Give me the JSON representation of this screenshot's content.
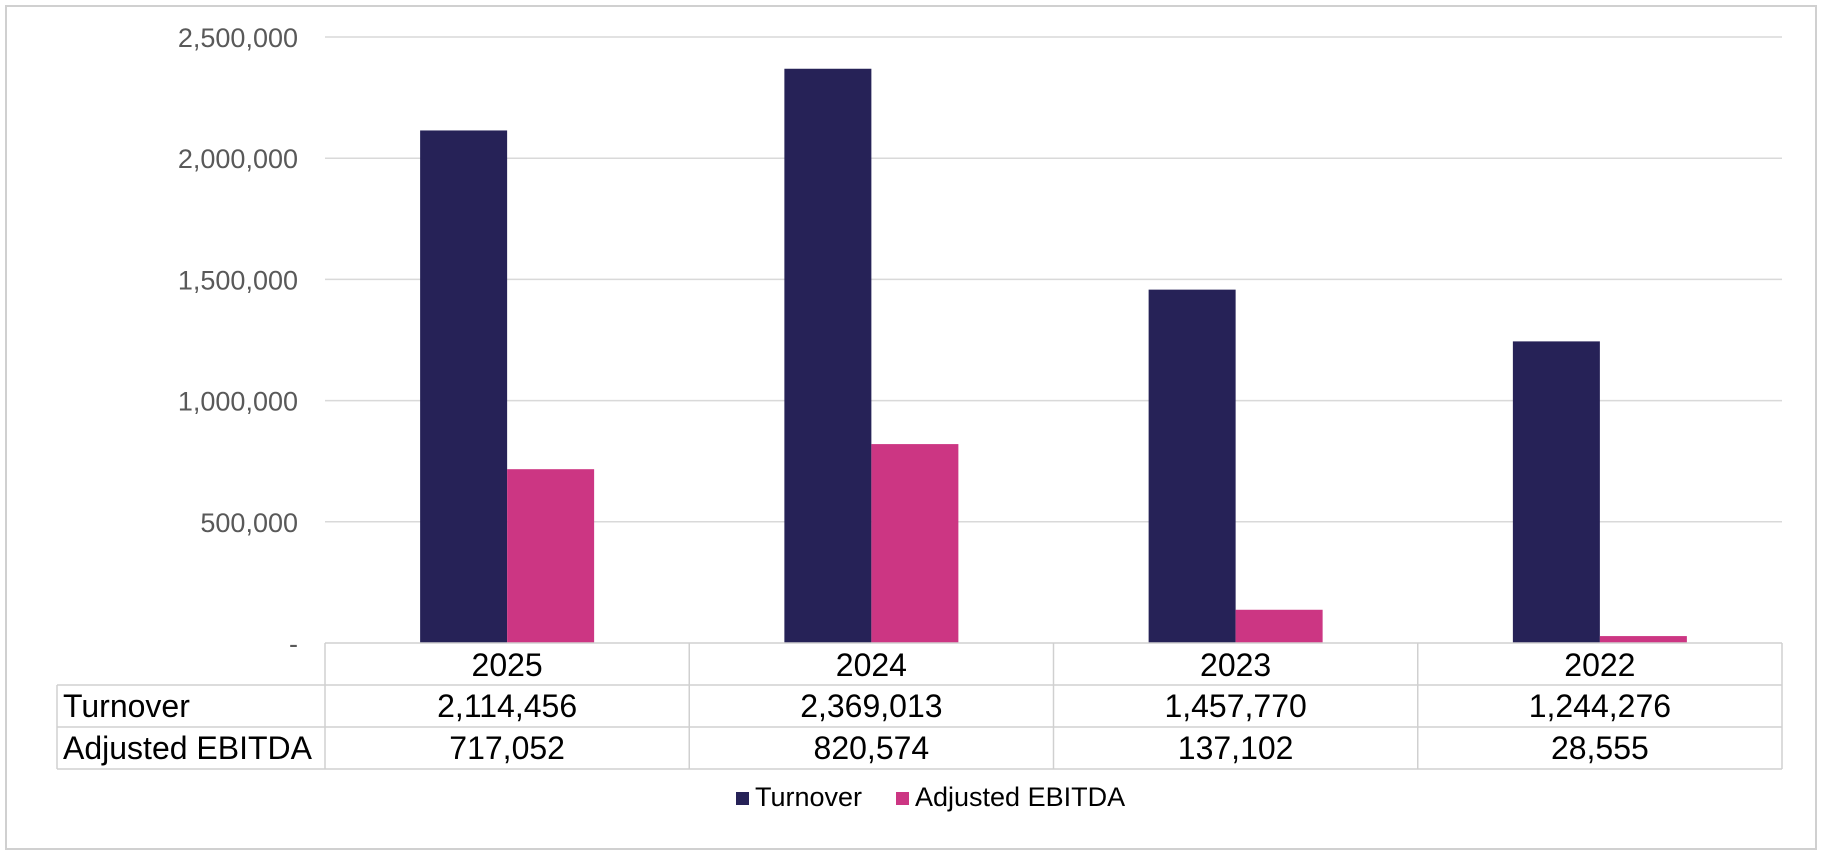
{
  "chart_data": {
    "type": "bar",
    "categories": [
      "2025",
      "2024",
      "2023",
      "2022"
    ],
    "series": [
      {
        "name": "Turnover",
        "values": [
          2114456,
          2369013,
          1457770,
          1244276
        ],
        "color": "#262257",
        "value_labels": [
          "2,114,456",
          "2,369,013",
          "1,457,770",
          "1,244,276"
        ]
      },
      {
        "name": "Adjusted EBITDA",
        "values": [
          717052,
          820574,
          137102,
          28555
        ],
        "color": "#cc3683",
        "value_labels": [
          "717,052",
          "820,574",
          "137,102",
          "28,555"
        ]
      }
    ],
    "ylim": [
      0,
      2500000
    ],
    "yticks": [
      0,
      500000,
      1000000,
      1500000,
      2000000,
      2500000
    ],
    "ytick_labels": [
      "-",
      "500,000",
      "1,000,000",
      "1,500,000",
      "2,000,000",
      "2,500,000"
    ],
    "grid": true,
    "data_table": true,
    "legend": "bottom"
  }
}
